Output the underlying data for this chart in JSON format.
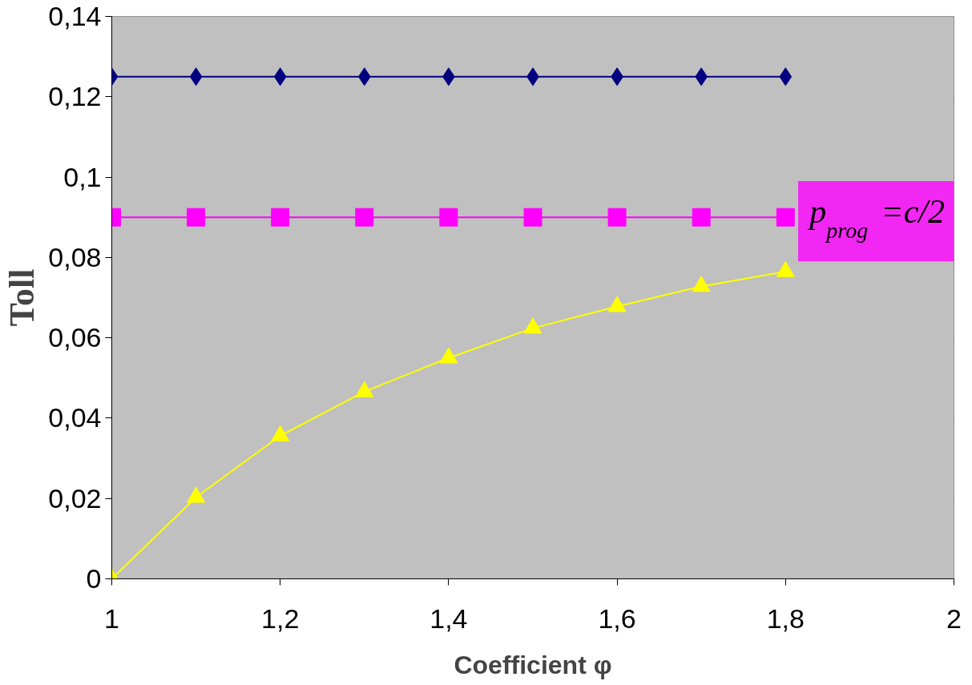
{
  "chart_data": {
    "type": "line",
    "xlabel": "Coefficient φ",
    "ylabel": "Toll",
    "x": [
      1,
      1.1,
      1.2,
      1.3,
      1.4,
      1.5,
      1.6,
      1.7,
      1.8
    ],
    "series": [
      {
        "color": "#000080",
        "marker": "diamond",
        "values": [
          0.125,
          0.125,
          0.125,
          0.125,
          0.125,
          0.125,
          0.125,
          0.125,
          0.125
        ]
      },
      {
        "name": "p$_{prog}$=c/2",
        "color": "#ff00ff",
        "marker": "square",
        "values": [
          0.09,
          0.09,
          0.09,
          0.09,
          0.09,
          0.09,
          0.09,
          0.09,
          0.09
        ]
      },
      {
        "color": "#ffff00",
        "marker": "triangle",
        "values": [
          0,
          0.0203,
          0.0356,
          0.0466,
          0.055,
          0.0624,
          0.0678,
          0.0728,
          0.0765
        ]
      }
    ],
    "xlim": [
      1,
      2
    ],
    "xticks": [
      1,
      {
        "value": 1.2,
        "label": "1,2"
      },
      {
        "value": 1.4,
        "label": "1,4"
      },
      {
        "value": 1.6,
        "label": "1,6"
      },
      {
        "value": 1.8,
        "label": "1,8"
      },
      2
    ],
    "ylim": [
      0,
      0.14
    ],
    "yticks": [
      0,
      {
        "value": 0.02,
        "label": "0,02"
      },
      {
        "value": 0.04,
        "label": "0,04"
      },
      {
        "value": 0.06,
        "label": "0,06"
      },
      {
        "value": 0.08,
        "label": "0,08"
      },
      {
        "value": 0.1,
        "label": "0,1"
      },
      {
        "value": 0.12,
        "label": "0,12"
      },
      {
        "value": 0.14,
        "label": "0,14"
      }
    ],
    "grid": "y",
    "legend": false
  }
}
